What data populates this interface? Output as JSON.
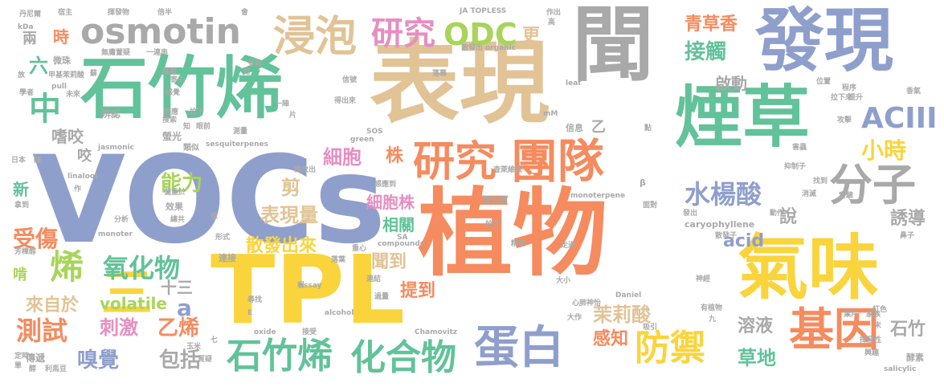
{
  "palette": {
    "orange": "#f58b5e",
    "blue": "#8f9fcc",
    "green": "#62c29a",
    "tan": "#e1c396",
    "yellow": "#fad43c",
    "lime": "#a8d45a",
    "pink": "#e58fc1",
    "gray": "#a9a9a9"
  },
  "words": {
    "w01": "VOCs",
    "w02": "植物",
    "w03": "聞",
    "w04": "表現",
    "w05": "石竹烯",
    "w06": "發現",
    "w07": "煙草",
    "w08": "TPL",
    "w09": "氣味",
    "w10": "osmotin",
    "w11": "浸泡",
    "w12": "研究",
    "w13": "團隊",
    "w14": "分子",
    "w15": "基因",
    "w16": "蛋白",
    "w17": "防禦",
    "w18": "石竹烯",
    "w19": "化合物",
    "w20": "研究",
    "w21": "ODC",
    "w22": "更",
    "w23": "三",
    "w24": "烯",
    "w25": "中",
    "w26": "氧化物",
    "w27": "水楊酸",
    "w28": "ACIII",
    "w29": "小時",
    "w30": "接觸",
    "w31": "青草香",
    "w32": "細胞",
    "w33": "株",
    "w34": "能力",
    "w35": "剪",
    "w36": "表現量",
    "w37": "細胞株",
    "w38": "相關",
    "w39": "散發出來",
    "w40": "聞到",
    "w41": "提到",
    "w42": "刺激",
    "w43": "乙烯",
    "w44": "測試",
    "w45": "來自於",
    "w46": "受傷",
    "w47": "嗅覺",
    "w48": "包括",
    "w49": "volatile",
    "w50": "acid",
    "w51": "茉莉酸",
    "w52": "感知",
    "w53": "溶液",
    "w54": "草地",
    "w55": "石竹",
    "w56": "誘導",
    "w57": "說",
    "w58": "啟動",
    "w59": "時",
    "w60": "六",
    "w61": "兩",
    "w62": "新",
    "w63": "嗜咬",
    "w64": "咬",
    "w65": "乙",
    "w66": "十三",
    "w67": "a",
    "w68": "啃",
    "w69": "微珠",
    "w70": "甲基茉莉酸",
    "w71": "無庸置疑",
    "w72": "一連串",
    "w73": "散發出",
    "w74": "organic",
    "w75": "JA TOPLESS",
    "w76": "作出",
    "w77": "宿主",
    "w78": "揮發物",
    "w79": "倍半",
    "w80": "丹尼爾",
    "w81": "kDa",
    "w82": "pull",
    "w83": "學者",
    "w84": "未來",
    "w85": "辨認",
    "w86": "感應",
    "w87": "類似",
    "w88": "螢光",
    "w89": "知",
    "w90": "jasmonic",
    "w91": "sesquiterpenes",
    "w92": "linalool",
    "w93": "green",
    "w94": "信息",
    "w95": "查萊維茲",
    "w96": "蛋白質",
    "w97": "monoterpene",
    "w98": "SOS",
    "w99": "mM",
    "w100": "leaf",
    "w101": "位置",
    "w102": "程序",
    "w103": "拉下來",
    "w104": "香氣",
    "w105": "抑制子",
    "w106": "找到",
    "w107": "實驗",
    "w108": "攻擊",
    "w109": "害蟲",
    "w110": "消滅",
    "w111": "動作",
    "w112": "發出",
    "w113": "面對",
    "w114": "感應到",
    "w115": "釋放出",
    "w116": "偏重於",
    "w117": "效果",
    "w118": "總共",
    "w119": "分析",
    "w120": "monoter",
    "w121": "芳樟醇",
    "w122": "形式",
    "w123": "連接",
    "w124": "重心",
    "w125": "落葉",
    "w126": "compounds",
    "w127": "SA",
    "w128": "於於",
    "w129": "精確",
    "w130": "走過",
    "w131": "caryophyllene",
    "w132": "散發子",
    "w133": "鼻子",
    "w134": "神經",
    "w135": "有植物",
    "w136": "紅色",
    "w137": "葉片",
    "w138": "家族",
    "w139": "大小",
    "w140": "心肺神怡",
    "w141": "Daniel",
    "w142": "assay",
    "w143": "alcohol",
    "w144": "oxide",
    "w145": "Chamovitz",
    "w146": "吸引",
    "w147": "大作",
    "w148": "九",
    "w149": "接受",
    "w150": "過量",
    "w151": "連結",
    "w152": "興趣",
    "w153": "揮發性",
    "w154": "酵素",
    "w155": "salicylic",
    "w156": "傳遞",
    "w157": "玉米",
    "w158": "質疑",
    "w159": "七",
    "w160": "單",
    "w161": "醇",
    "w162": "利馬豆",
    "w163": "定時",
    "w164": "得出來",
    "w165": "信號",
    "w166": "落幕",
    "w167": "寄生",
    "w168": "受器",
    "w169": "測量",
    "w170": "片",
    "w171": "鏈",
    "w172": "拉下",
    "w173": "蘇",
    "w174": "眼前",
    "w175": "總量",
    "w176": "感覺",
    "w177": "搜索",
    "w178": "放",
    "w179": "日本",
    "w180": "作",
    "w181": "拿到",
    "w182": "一陣",
    "w183": "橡",
    "w184": "β",
    "w185": "高",
    "w186": "末",
    "w187": "提升",
    "w188": "點",
    "w189": "會",
    "w190": "見",
    "w191": "E",
    "w192": "尋找",
    "w193": "根"
  }
}
